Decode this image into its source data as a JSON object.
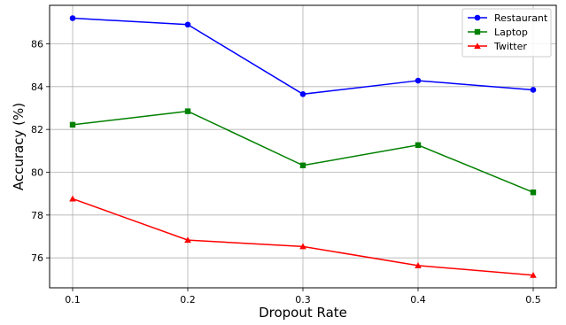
{
  "chart_data": {
    "type": "line",
    "title": "",
    "xlabel": "Dropout Rate",
    "ylabel": "Accuracy (%)",
    "x": [
      0.1,
      0.2,
      0.3,
      0.4,
      0.5
    ],
    "x_ticks": [
      "0.1",
      "0.2",
      "0.3",
      "0.4",
      "0.5"
    ],
    "y_ticks": [
      76,
      78,
      80,
      82,
      84,
      86
    ],
    "xlim": [
      0.08,
      0.52
    ],
    "ylim": [
      74.6,
      87.8
    ],
    "grid": true,
    "legend_position": "top-right",
    "series": [
      {
        "name": "Restaurant",
        "color": "#0000ff",
        "marker": "circle",
        "values": [
          87.2,
          86.9,
          83.65,
          84.28,
          83.85
        ]
      },
      {
        "name": "Laptop",
        "color": "#008000",
        "marker": "square",
        "values": [
          82.22,
          82.85,
          80.32,
          81.27,
          79.06
        ]
      },
      {
        "name": "Twitter",
        "color": "#ff0000",
        "marker": "triangle",
        "values": [
          78.76,
          76.83,
          76.53,
          75.64,
          75.19
        ]
      }
    ]
  }
}
